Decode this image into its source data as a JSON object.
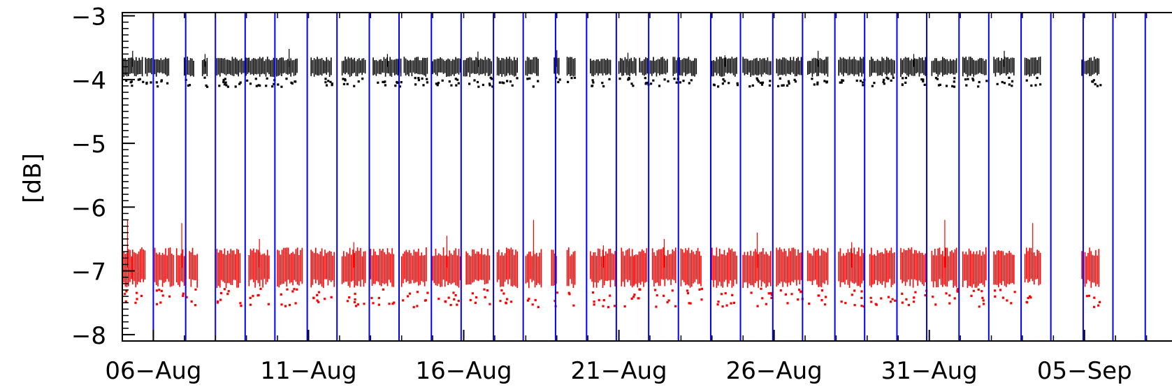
{
  "chart_data": {
    "type": "scatter",
    "title": "",
    "xlabel": "",
    "ylabel": "[dB]",
    "ylim": [
      -8.1,
      -2.95
    ],
    "xlim": [
      "2013-08-05",
      "2013-09-08"
    ],
    "grid": false,
    "x_tick_labels": [
      "06−Aug",
      "11−Aug",
      "16−Aug",
      "21−Aug",
      "26−Aug",
      "31−Aug",
      "05−Sep"
    ],
    "x_tick_dates": [
      "2013-08-06",
      "2013-08-11",
      "2013-08-16",
      "2013-08-21",
      "2013-08-26",
      "2013-08-31",
      "2013-09-05"
    ],
    "y_ticks": [
      -3,
      -4,
      -5,
      -6,
      -7,
      -8
    ],
    "y_tick_labels": [
      "−3",
      "−4",
      "−5",
      "−6",
      "−7",
      "−8"
    ],
    "series": [
      {
        "color": "#000000",
        "center": -3.8,
        "spread": 0.16,
        "outliers_up": [
          -3.55,
          -3.6,
          -3.52,
          -3.6,
          -3.56,
          -3.54,
          -3.58,
          -3.62,
          -3.55,
          -3.6
        ],
        "segments": [
          [
            "2013-08-05 00:00",
            "2013-08-05 16:00"
          ],
          [
            "2013-08-05 18:00",
            "2013-08-06 12:00"
          ],
          [
            "2013-08-07 00:00",
            "2013-08-07 08:00"
          ],
          [
            "2013-08-07 14:00",
            "2013-08-07 18:00"
          ],
          [
            "2013-08-08 00:00",
            "2013-08-09 02:00"
          ],
          [
            "2013-08-09 02:00",
            "2013-08-10 02:00"
          ],
          [
            "2013-08-10 02:00",
            "2013-08-10 16:00"
          ],
          [
            "2013-08-11 02:00",
            "2013-08-11 18:00"
          ],
          [
            "2013-08-12 02:00",
            "2013-08-12 20:00"
          ],
          [
            "2013-08-13 02:00",
            "2013-08-14 00:00"
          ],
          [
            "2013-08-14 02:00",
            "2013-08-14 20:00"
          ],
          [
            "2013-08-15 00:00",
            "2013-08-15 22:00"
          ],
          [
            "2013-08-16 00:00",
            "2013-08-16 22:00"
          ],
          [
            "2013-08-17 02:00",
            "2013-08-17 18:00"
          ],
          [
            "2013-08-18 00:00",
            "2013-08-18 10:00"
          ],
          [
            "2013-08-18 22:00",
            "2013-08-19 02:00"
          ],
          [
            "2013-08-19 08:00",
            "2013-08-19 14:00"
          ],
          [
            "2013-08-20 02:00",
            "2013-08-20 18:00"
          ],
          [
            "2013-08-21 00:00",
            "2013-08-21 14:00"
          ],
          [
            "2013-08-21 16:00",
            "2013-08-22 14:00"
          ],
          [
            "2013-08-22 18:00",
            "2013-08-23 12:00"
          ],
          [
            "2013-08-24 00:00",
            "2013-08-24 20:00"
          ],
          [
            "2013-08-25 00:00",
            "2013-08-25 22:00"
          ],
          [
            "2013-08-26 02:00",
            "2013-08-26 22:00"
          ],
          [
            "2013-08-27 02:00",
            "2013-08-27 18:00"
          ],
          [
            "2013-08-28 02:00",
            "2013-08-28 22:00"
          ],
          [
            "2013-08-29 02:00",
            "2013-08-29 22:00"
          ],
          [
            "2013-08-30 02:00",
            "2013-08-30 22:00"
          ],
          [
            "2013-08-31 02:00",
            "2013-08-31 22:00"
          ],
          [
            "2013-09-01 02:00",
            "2013-09-01 20:00"
          ],
          [
            "2013-09-02 02:00",
            "2013-09-02 18:00"
          ],
          [
            "2013-09-03 02:00",
            "2013-09-03 14:00"
          ],
          [
            "2013-09-04 22:00",
            "2013-09-05 12:00"
          ]
        ]
      },
      {
        "color": "#ff0000",
        "center": -6.95,
        "spread": 0.32,
        "outliers_up": [
          -6.2,
          -6.25,
          -6.5,
          -6.55,
          -6.45,
          -6.2,
          -6.6,
          -6.5,
          -6.4,
          -6.55
        ],
        "segments": [
          [
            "2013-08-05 00:00",
            "2013-08-05 08:00"
          ],
          [
            "2013-08-05 08:00",
            "2013-08-05 18:00"
          ],
          [
            "2013-08-06 00:00",
            "2013-08-06 16:00"
          ],
          [
            "2013-08-06 18:00",
            "2013-08-07 02:00"
          ],
          [
            "2013-08-07 04:00",
            "2013-08-07 10:00"
          ],
          [
            "2013-08-08 00:00",
            "2013-08-08 20:00"
          ],
          [
            "2013-08-09 02:00",
            "2013-08-09 18:00"
          ],
          [
            "2013-08-10 00:00",
            "2013-08-10 20:00"
          ],
          [
            "2013-08-11 02:00",
            "2013-08-11 20:00"
          ],
          [
            "2013-08-12 02:00",
            "2013-08-12 20:00"
          ],
          [
            "2013-08-13 00:00",
            "2013-08-13 18:00"
          ],
          [
            "2013-08-14 00:00",
            "2013-08-14 20:00"
          ],
          [
            "2013-08-15 00:00",
            "2013-08-15 22:00"
          ],
          [
            "2013-08-16 02:00",
            "2013-08-16 20:00"
          ],
          [
            "2013-08-17 02:00",
            "2013-08-17 18:00"
          ],
          [
            "2013-08-18 00:00",
            "2013-08-18 12:00"
          ],
          [
            "2013-08-18 20:00",
            "2013-08-19 00:00"
          ],
          [
            "2013-08-19 08:00",
            "2013-08-19 14:00"
          ],
          [
            "2013-08-20 02:00",
            "2013-08-20 22:00"
          ],
          [
            "2013-08-21 02:00",
            "2013-08-21 12:00"
          ],
          [
            "2013-08-21 12:00",
            "2013-08-21 22:00"
          ],
          [
            "2013-08-22 02:00",
            "2013-08-22 20:00"
          ],
          [
            "2013-08-23 00:00",
            "2013-08-23 16:00"
          ],
          [
            "2013-08-24 00:00",
            "2013-08-24 20:00"
          ],
          [
            "2013-08-25 00:00",
            "2013-08-25 22:00"
          ],
          [
            "2013-08-26 02:00",
            "2013-08-26 22:00"
          ],
          [
            "2013-08-27 02:00",
            "2013-08-27 18:00"
          ],
          [
            "2013-08-28 02:00",
            "2013-08-28 22:00"
          ],
          [
            "2013-08-29 02:00",
            "2013-08-29 22:00"
          ],
          [
            "2013-08-30 02:00",
            "2013-08-30 22:00"
          ],
          [
            "2013-08-31 02:00",
            "2013-08-31 22:00"
          ],
          [
            "2013-09-01 02:00",
            "2013-09-01 20:00"
          ],
          [
            "2013-09-02 02:00",
            "2013-09-02 18:00"
          ],
          [
            "2013-09-03 02:00",
            "2013-09-03 14:00"
          ],
          [
            "2013-09-04 22:00",
            "2013-09-05 12:00"
          ]
        ]
      }
    ],
    "vlines": {
      "color": "#0000ff",
      "dates": [
        "2013-08-06 00:00",
        "2013-08-07 01:00",
        "2013-08-08 00:00",
        "2013-08-08 23:00",
        "2013-08-09 22:00",
        "2013-08-10 23:00",
        "2013-08-11 22:00",
        "2013-08-12 23:00",
        "2013-08-13 22:00",
        "2013-08-14 23:00",
        "2013-08-15 22:00",
        "2013-08-16 23:00",
        "2013-08-17 22:00",
        "2013-08-18 23:00",
        "2013-08-19 23:00",
        "2013-08-20 22:00",
        "2013-08-21 23:00",
        "2013-08-22 22:00",
        "2013-08-23 23:00",
        "2013-08-24 22:00",
        "2013-08-25 23:00",
        "2013-08-26 22:00",
        "2013-08-27 23:00",
        "2013-08-28 22:00",
        "2013-08-29 23:00",
        "2013-08-30 22:00",
        "2013-08-31 23:00",
        "2013-09-01 22:00",
        "2013-09-02 23:00",
        "2013-09-03 22:00",
        "2013-09-04 23:00",
        "2013-09-05 22:00",
        "2013-09-06 23:00",
        "2013-09-07 22:00"
      ]
    }
  }
}
